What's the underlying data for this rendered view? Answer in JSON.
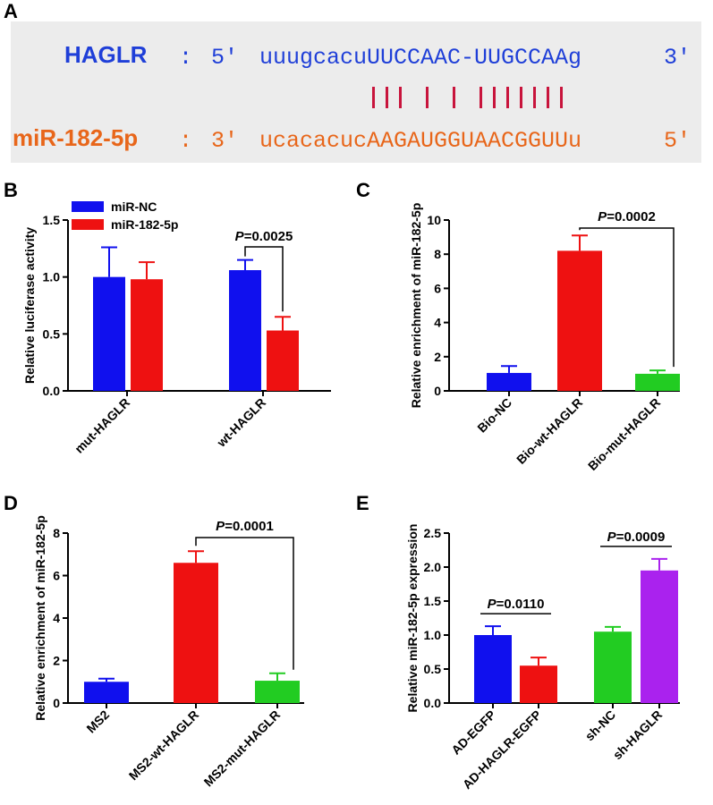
{
  "panels": {
    "a": {
      "letter": "A",
      "lines": [
        {
          "name": "HAGLR",
          "colon": ":",
          "end5": "5'",
          "seq": "uuugcacuUUCCAAC-UUGCCAAg",
          "end3": "3'",
          "color": "#1f3fd8"
        },
        {
          "name": "miR-182-5p",
          "colon": ":",
          "end5": "3'",
          "seq": "ucacacucAAGAUGGUAACGGUUu",
          "end3": "5'",
          "color": "#e8661a"
        }
      ],
      "pairing_marks": "||| | | |||||||",
      "pair_color": "#c8143c"
    }
  },
  "chart_data": [
    {
      "panel": "B",
      "type": "bar",
      "ylabel": "Relative luciferase activity",
      "ylim": [
        0,
        1.5
      ],
      "yticks": [
        "0.0",
        "0.5",
        "1.0",
        "1.5"
      ],
      "categories": [
        "mut-HAGLR",
        "wt-HAGLR"
      ],
      "legend": {
        "position": "top-left"
      },
      "series": [
        {
          "name": "miR-NC",
          "color": "#1010ee",
          "values": [
            1.0,
            1.06
          ],
          "errors": [
            0.26,
            0.09
          ]
        },
        {
          "name": "miR-182-5p",
          "color": "#ee1111",
          "values": [
            0.98,
            0.53
          ],
          "errors": [
            0.15,
            0.12
          ]
        }
      ],
      "annotations": [
        {
          "text": "P=0.0025",
          "between": [
            "wt-HAGLR/miR-NC",
            "wt-HAGLR/miR-182-5p"
          ]
        }
      ]
    },
    {
      "panel": "C",
      "type": "bar",
      "ylabel": "Relative enrichment of miR-182-5p",
      "ylim": [
        0,
        10
      ],
      "yticks": [
        "0",
        "2",
        "4",
        "6",
        "8",
        "10"
      ],
      "categories": [
        "Bio-NC",
        "Bio-wt-HAGLR",
        "Bio-mut-HAGLR"
      ],
      "values": [
        1.05,
        8.2,
        1.0
      ],
      "errors": [
        0.4,
        0.9,
        0.2
      ],
      "colors": [
        "#1010ee",
        "#ee1111",
        "#22cc22"
      ],
      "annotations": [
        {
          "text": "P=0.0002",
          "between": [
            "Bio-wt-HAGLR",
            "Bio-mut-HAGLR"
          ]
        }
      ]
    },
    {
      "panel": "D",
      "type": "bar",
      "ylabel": "Relative enrichment of miR-182-5p",
      "ylim": [
        0,
        8
      ],
      "yticks": [
        "0",
        "2",
        "4",
        "6",
        "8"
      ],
      "categories": [
        "MS2",
        "MS2-wt-HAGLR",
        "MS2-mut-HAGLR"
      ],
      "values": [
        1.0,
        6.6,
        1.05
      ],
      "errors": [
        0.15,
        0.55,
        0.35
      ],
      "colors": [
        "#1010ee",
        "#ee1111",
        "#22cc22"
      ],
      "annotations": [
        {
          "text": "P=0.0001",
          "between": [
            "MS2-wt-HAGLR",
            "MS2-mut-HAGLR"
          ]
        }
      ]
    },
    {
      "panel": "E",
      "type": "bar",
      "ylabel": "Relative miR-182-5p expression",
      "ylim": [
        0,
        2.5
      ],
      "yticks": [
        "0.0",
        "0.5",
        "1.0",
        "1.5",
        "2.0",
        "2.5"
      ],
      "categories": [
        "AD-EGFP",
        "AD-HAGLR-EGFP",
        "sh-NC",
        "sh-HAGLR"
      ],
      "values": [
        1.0,
        0.55,
        1.05,
        1.95
      ],
      "errors": [
        0.13,
        0.12,
        0.07,
        0.17
      ],
      "colors": [
        "#1010ee",
        "#ee1111",
        "#22cc22",
        "#aa22ee"
      ],
      "annotations": [
        {
          "text": "P=0.0110",
          "between": [
            "AD-EGFP",
            "AD-HAGLR-EGFP"
          ]
        },
        {
          "text": "P=0.0009",
          "between": [
            "sh-NC",
            "sh-HAGLR"
          ]
        }
      ]
    }
  ]
}
